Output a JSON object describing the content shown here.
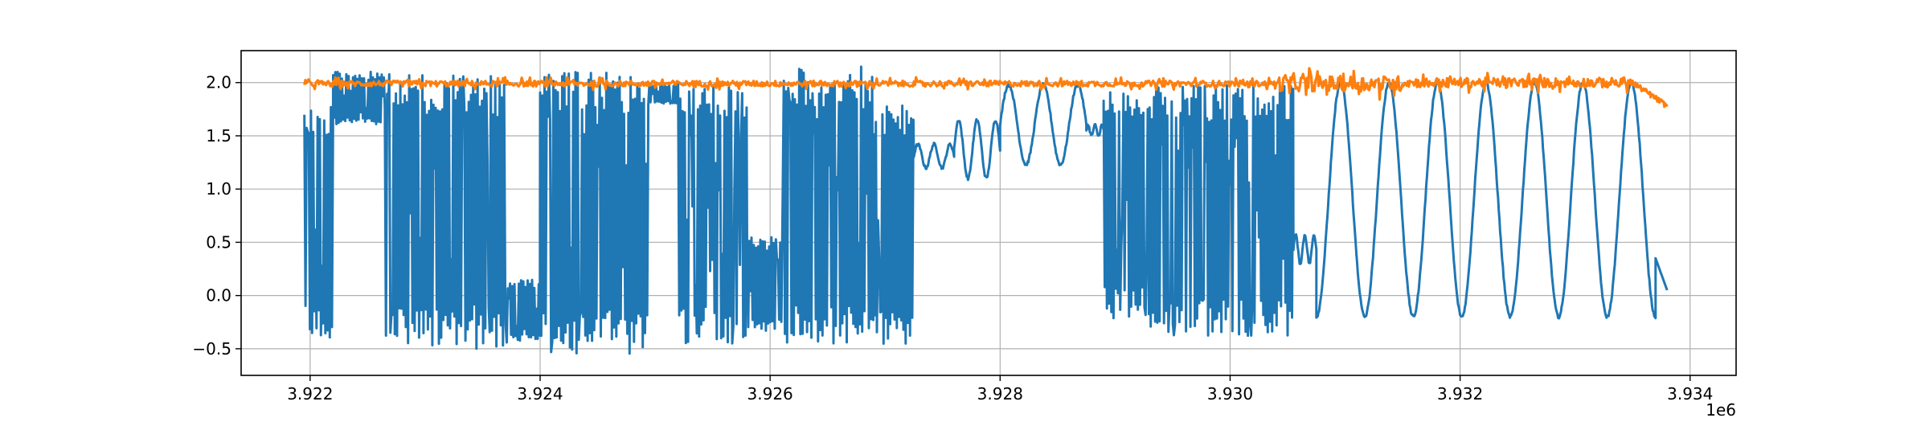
{
  "chart_data": {
    "type": "line",
    "title": "",
    "xlabel": "",
    "ylabel": "",
    "x_offset_label": "1e6",
    "xlim": [
      3921400,
      3934400
    ],
    "ylim": [
      -0.75,
      2.3
    ],
    "grid": true,
    "x_ticks": [
      3922000,
      3924000,
      3926000,
      3928000,
      3930000,
      3932000,
      3934000
    ],
    "x_tick_labels": [
      "3.922",
      "3.924",
      "3.926",
      "3.928",
      "3.930",
      "3.932",
      "3.934"
    ],
    "y_ticks": [
      -0.5,
      0.0,
      0.5,
      1.0,
      1.5,
      2.0
    ],
    "y_tick_labels": [
      "−0.5",
      "0.0",
      "0.5",
      "1.0",
      "1.5",
      "2.0"
    ],
    "series": [
      {
        "color": "#1f77b4",
        "x_start": 3921950,
        "x_end": 3933800,
        "segments": [
          {
            "kind": "dense",
            "x0": 3921950,
            "x1": 3922200,
            "lo": -0.43,
            "hi": 1.8
          },
          {
            "kind": "dense",
            "x0": 3922200,
            "x1": 3922650,
            "lo": 1.6,
            "hi": 2.1
          },
          {
            "kind": "dense",
            "x0": 3922650,
            "x1": 3923700,
            "lo": -0.5,
            "hi": 2.08
          },
          {
            "kind": "dense",
            "x0": 3923700,
            "x1": 3924000,
            "lo": -0.45,
            "hi": 0.15
          },
          {
            "kind": "dense",
            "x0": 3924000,
            "x1": 3924950,
            "lo": -0.55,
            "hi": 2.1
          },
          {
            "kind": "dense",
            "x0": 3924950,
            "x1": 3925200,
            "lo": 1.8,
            "hi": 1.98
          },
          {
            "kind": "dense",
            "x0": 3925200,
            "x1": 3925800,
            "lo": -0.45,
            "hi": 2.0
          },
          {
            "kind": "dense",
            "x0": 3925800,
            "x1": 3926100,
            "lo": -0.35,
            "hi": 0.55
          },
          {
            "kind": "dense",
            "x0": 3926100,
            "x1": 3926900,
            "lo": -0.47,
            "hi": 2.15
          },
          {
            "kind": "dense",
            "x0": 3926900,
            "x1": 3927250,
            "lo": -0.48,
            "hi": 1.8
          },
          {
            "kind": "smooth",
            "x0": 3927250,
            "x1": 3927600,
            "lo": 1.2,
            "hi": 1.42
          },
          {
            "kind": "smooth",
            "x0": 3927600,
            "x1": 3928000,
            "lo": 1.1,
            "hi": 1.65
          },
          {
            "kind": "smooth",
            "x0": 3928000,
            "x1": 3928750,
            "lo": 1.23,
            "hi": 1.98
          },
          {
            "kind": "smooth",
            "x0": 3928750,
            "x1": 3928900,
            "lo": 1.5,
            "hi": 1.6
          },
          {
            "kind": "dense",
            "x0": 3928900,
            "x1": 3929300,
            "lo": -0.22,
            "hi": 1.98
          },
          {
            "kind": "dense",
            "x0": 3929300,
            "x1": 3930550,
            "lo": -0.38,
            "hi": 1.98
          },
          {
            "kind": "smooth",
            "x0": 3930550,
            "x1": 3930750,
            "lo": 0.3,
            "hi": 0.57
          },
          {
            "kind": "wave",
            "x0": 3930750,
            "x1": 3933700,
            "lo": -0.2,
            "hi": 2.0,
            "cycles": 7
          },
          {
            "kind": "tail",
            "x0": 3933700,
            "x1": 3933800,
            "lo": 0.05,
            "hi": 0.35
          }
        ]
      },
      {
        "color": "#ff7f0e",
        "x_start": 3921950,
        "x_end": 3933800,
        "base": 1.985,
        "segments": [
          {
            "kind": "noise",
            "x0": 3921950,
            "x1": 3930400,
            "lo": 1.93,
            "hi": 2.05
          },
          {
            "kind": "noise",
            "x0": 3930400,
            "x1": 3931500,
            "lo": 1.83,
            "hi": 2.15
          },
          {
            "kind": "noise",
            "x0": 3931500,
            "x1": 3933500,
            "lo": 1.9,
            "hi": 2.1
          },
          {
            "kind": "decay",
            "x0": 3933500,
            "x1": 3933800,
            "lo": 1.78,
            "hi": 2.0
          }
        ]
      }
    ]
  }
}
